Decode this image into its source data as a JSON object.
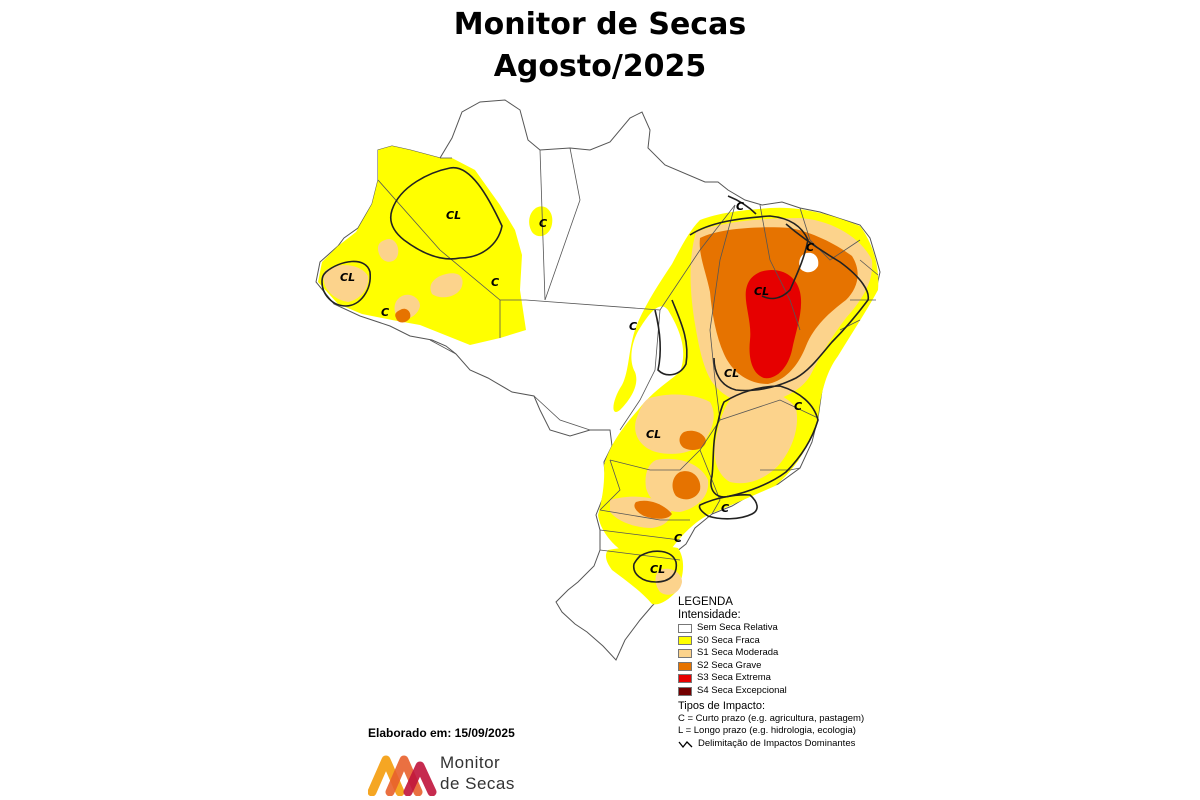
{
  "title": {
    "line1": "Monitor de Secas",
    "line2": "Agosto/2025"
  },
  "map_labels": {
    "cl": "CL",
    "c": "C"
  },
  "legend": {
    "heading": "LEGENDA",
    "intensity_heading": "Intensidade:",
    "classes": [
      {
        "label": "Sem Seca Relativa",
        "color": "#ffffff"
      },
      {
        "label": "S0 Seca Fraca",
        "color": "#ffff00"
      },
      {
        "label": "S1 Seca Moderada",
        "color": "#fcd38c"
      },
      {
        "label": "S2 Seca Grave",
        "color": "#e67300"
      },
      {
        "label": "S3 Seca Extrema",
        "color": "#e60000"
      },
      {
        "label": "S4 Seca Excepcional",
        "color": "#730000"
      }
    ],
    "impact_heading": "Tipos de Impacto:",
    "impact_c": "C = Curto prazo (e.g. agricultura, pastagem)",
    "impact_l": "L = Longo prazo (e.g. hidrologia, ecologia)",
    "delimitation": "Delimitação de Impactos Dominantes"
  },
  "elaborated": "Elaborado em: 15/09/2025",
  "logo": {
    "line1": "Monitor",
    "line2": "de Secas",
    "colors": [
      "#f5a623",
      "#e8612c",
      "#c0143c"
    ]
  }
}
